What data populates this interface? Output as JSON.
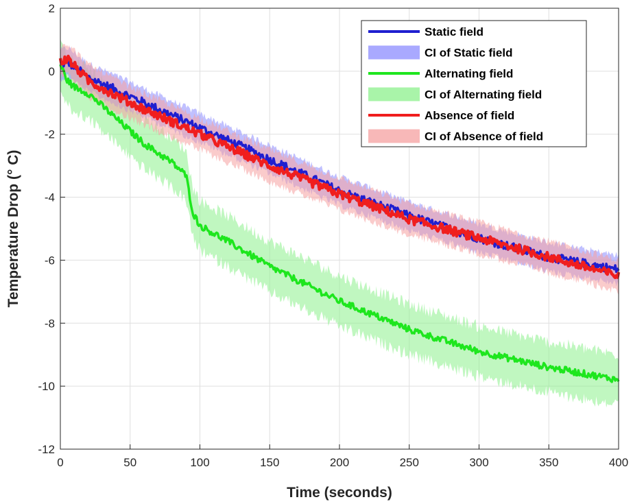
{
  "chart_data": {
    "type": "line",
    "title": "",
    "xlabel": "Time (seconds)",
    "ylabel": "Temperature Drop (° C)",
    "xlim": [
      0,
      400
    ],
    "ylim": [
      -12,
      2
    ],
    "xticks": [
      "0",
      "50",
      "100",
      "150",
      "200",
      "250",
      "300",
      "350",
      "400"
    ],
    "yticks": [
      "2",
      "0",
      "-2",
      "-4",
      "-6",
      "-8",
      "-10",
      "-12"
    ],
    "grid": true,
    "legend_position": "top-right",
    "series": [
      {
        "name": "Static field",
        "ci_name": "CI of Static field",
        "color": "#1f1fd0",
        "ci_color": "#8c8cff",
        "x": [
          0,
          5,
          20,
          50,
          100,
          150,
          200,
          250,
          300,
          350,
          400
        ],
        "y": [
          0.2,
          0.3,
          -0.2,
          -0.8,
          -1.8,
          -2.8,
          -3.8,
          -4.6,
          -5.3,
          -5.9,
          -6.3
        ],
        "ci_halfwidth": 0.45
      },
      {
        "name": "Alternating field",
        "ci_name": "CI of Alternating field",
        "color": "#1ee61e",
        "ci_color": "#8cf08c",
        "x": [
          0,
          5,
          10,
          20,
          40,
          60,
          80,
          90,
          95,
          100,
          120,
          150,
          200,
          250,
          300,
          350,
          400
        ],
        "y": [
          0.2,
          -0.3,
          -0.5,
          -0.7,
          -1.5,
          -2.3,
          -2.9,
          -3.3,
          -4.5,
          -4.9,
          -5.4,
          -6.2,
          -7.3,
          -8.2,
          -8.9,
          -9.4,
          -9.8
        ],
        "ci_halfwidth": 0.8
      },
      {
        "name": "Absence of field",
        "ci_name": "CI of Absence of field",
        "color": "#f01e1e",
        "ci_color": "#f5a0a0",
        "x": [
          0,
          5,
          20,
          50,
          100,
          150,
          200,
          250,
          300,
          350,
          400
        ],
        "y": [
          0.3,
          0.4,
          -0.3,
          -1.0,
          -2.0,
          -3.0,
          -3.9,
          -4.7,
          -5.3,
          -5.9,
          -6.5
        ],
        "ci_halfwidth": 0.5
      }
    ]
  }
}
